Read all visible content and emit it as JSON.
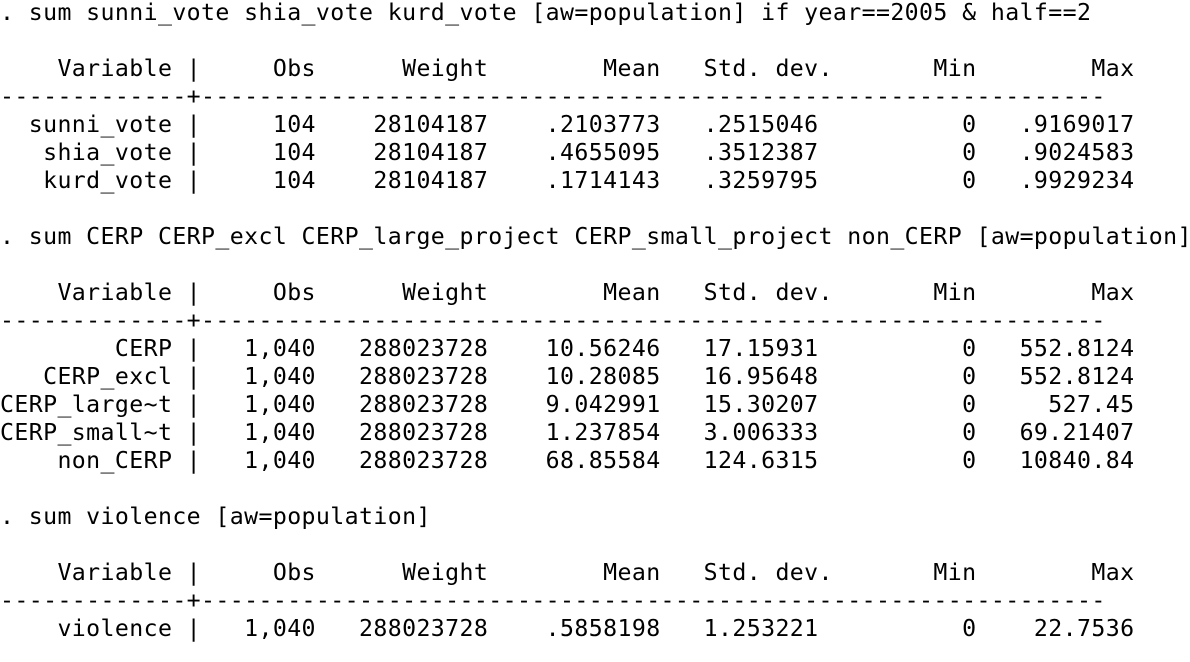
{
  "results": {
    "lines": [
      ". sum sunni_vote shia_vote kurd_vote [aw=population] if year==2005 & half==2",
      "",
      "    Variable |     Obs      Weight        Mean   Std. dev.       Min        Max",
      "-------------+---------------------------------------------------------------",
      "  sunni_vote |     104    28104187    .2103773   .2515046          0   .9169017",
      "   shia_vote |     104    28104187    .4655095   .3512387          0   .9024583",
      "   kurd_vote |     104    28104187    .1714143   .3259795          0   .9929234",
      "",
      ". sum CERP CERP_excl CERP_large_project CERP_small_project non_CERP [aw=population]",
      "",
      "    Variable |     Obs      Weight        Mean   Std. dev.       Min        Max",
      "-------------+---------------------------------------------------------------",
      "        CERP |   1,040   288023728    10.56246   17.15931          0   552.8124",
      "   CERP_excl |   1,040   288023728    10.28085   16.95648          0   552.8124",
      "CERP_large~t |   1,040   288023728    9.042991   15.30207          0     527.45",
      "CERP_small~t |   1,040   288023728    1.237854   3.006333          0   69.21407",
      "    non_CERP |   1,040   288023728    68.85584   124.6315          0   10840.84",
      "",
      ". sum violence [aw=population]",
      "",
      "    Variable |     Obs      Weight        Mean   Std. dev.       Min        Max",
      "-------------+---------------------------------------------------------------",
      "    violence |   1,040   288023728    .5858198   1.253221          0    22.7536"
    ]
  }
}
